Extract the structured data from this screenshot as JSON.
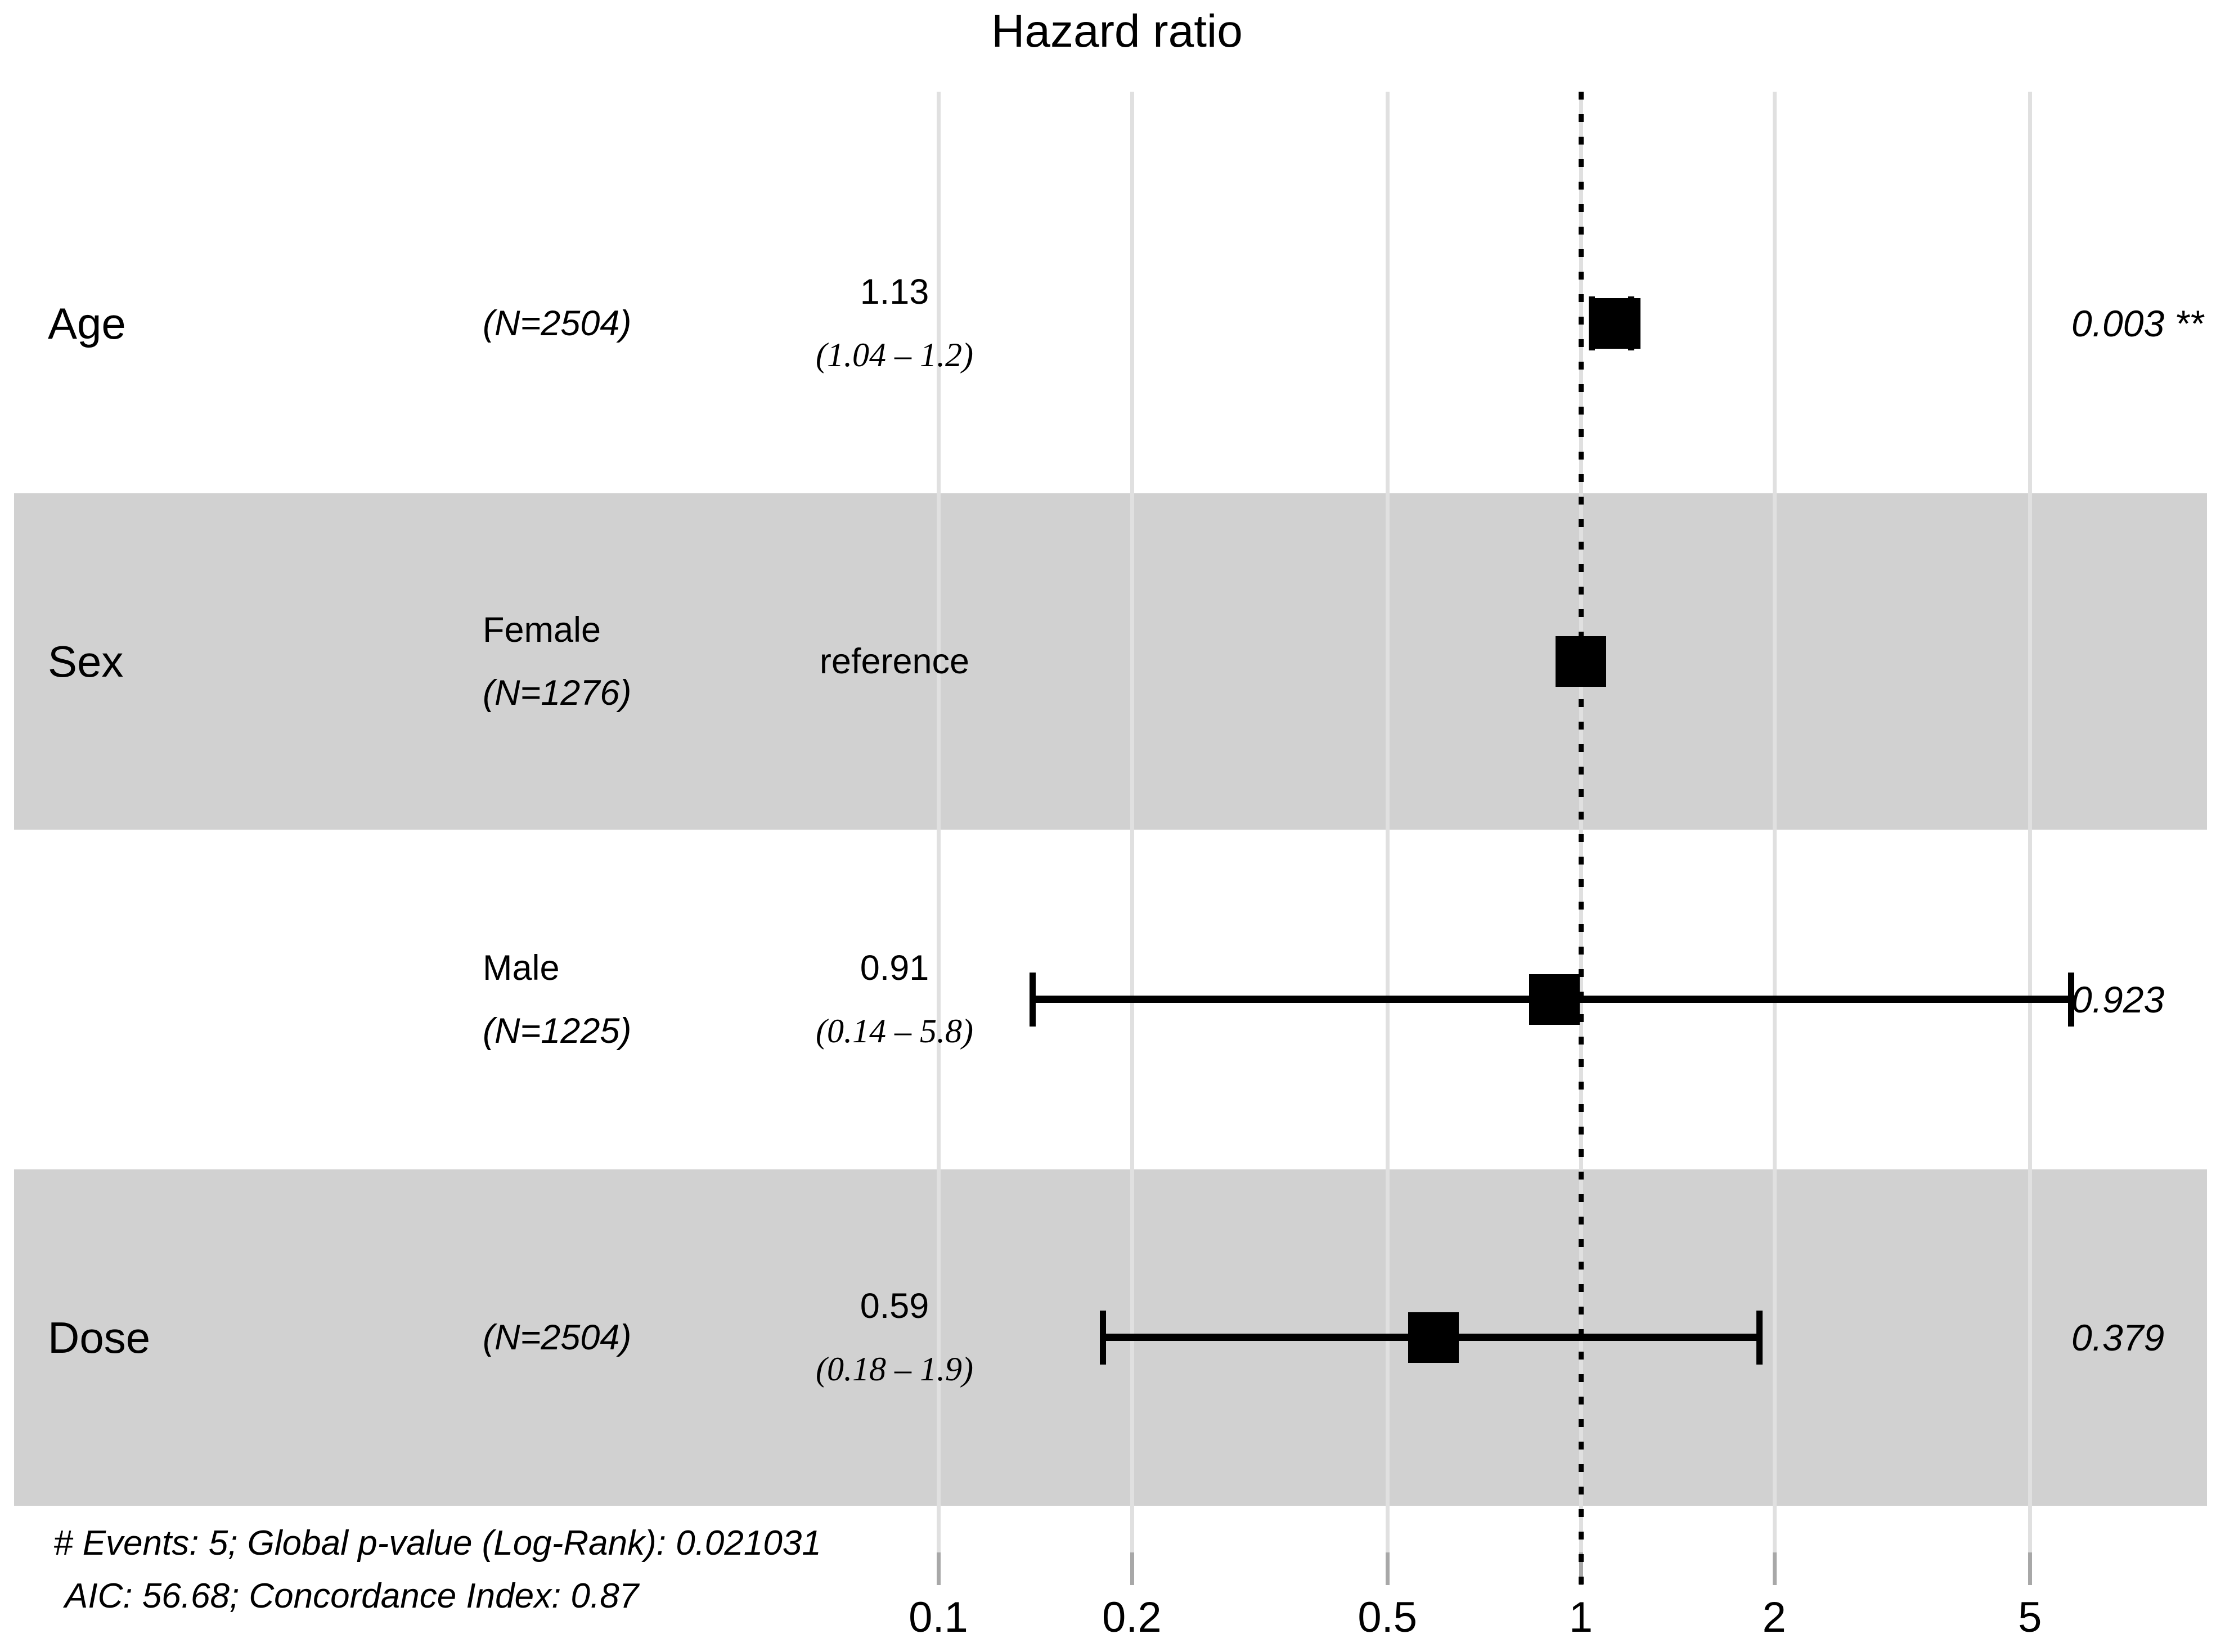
{
  "title": "Hazard ratio",
  "chart_data": {
    "type": "forest",
    "x_axis": {
      "scale": "log10",
      "ticks": [
        0.1,
        0.2,
        0.5,
        1,
        2,
        5
      ],
      "tick_labels": [
        "0.1",
        "0.2",
        "0.5",
        "1",
        "2",
        "5"
      ],
      "reference_line": 1,
      "range": [
        0.09,
        9.7
      ],
      "grid": true
    },
    "rows": [
      {
        "variable": "Age",
        "group": "",
        "n_label": "(N=2504)",
        "estimate_label": "1.13",
        "ci_label": "(1.04 – 1.2)",
        "hr": 1.13,
        "ci_low": 1.04,
        "ci_high": 1.2,
        "p_label": "0.003 **",
        "shaded": false
      },
      {
        "variable": "Sex",
        "group": "Female",
        "n_label": "(N=1276)",
        "estimate_label": "reference",
        "ci_label": "",
        "hr": 1,
        "ci_low": null,
        "ci_high": null,
        "p_label": "",
        "shaded": true
      },
      {
        "variable": "",
        "group": "Male",
        "n_label": "(N=1225)",
        "estimate_label": "0.91",
        "ci_label": "(0.14 – 5.8)",
        "hr": 0.91,
        "ci_low": 0.14,
        "ci_high": 5.8,
        "p_label": "0.923",
        "shaded": false
      },
      {
        "variable": "Dose",
        "group": "",
        "n_label": "(N=2504)",
        "estimate_label": "0.59",
        "ci_label": "(0.18 – 1.9)",
        "hr": 0.59,
        "ci_low": 0.18,
        "ci_high": 1.9,
        "p_label": "0.379",
        "shaded": true
      }
    ],
    "footer": [
      "# Events: 5; Global p-value (Log-Rank): 0.021031",
      "AIC: 56.68; Concordance Index: 0.87"
    ]
  },
  "colors": {
    "background": "#ffffff",
    "band": "#d1d1d1",
    "gridline": "#e0e0e0",
    "reference_line": "#000000",
    "marker": "#000000",
    "text": "#000000"
  }
}
